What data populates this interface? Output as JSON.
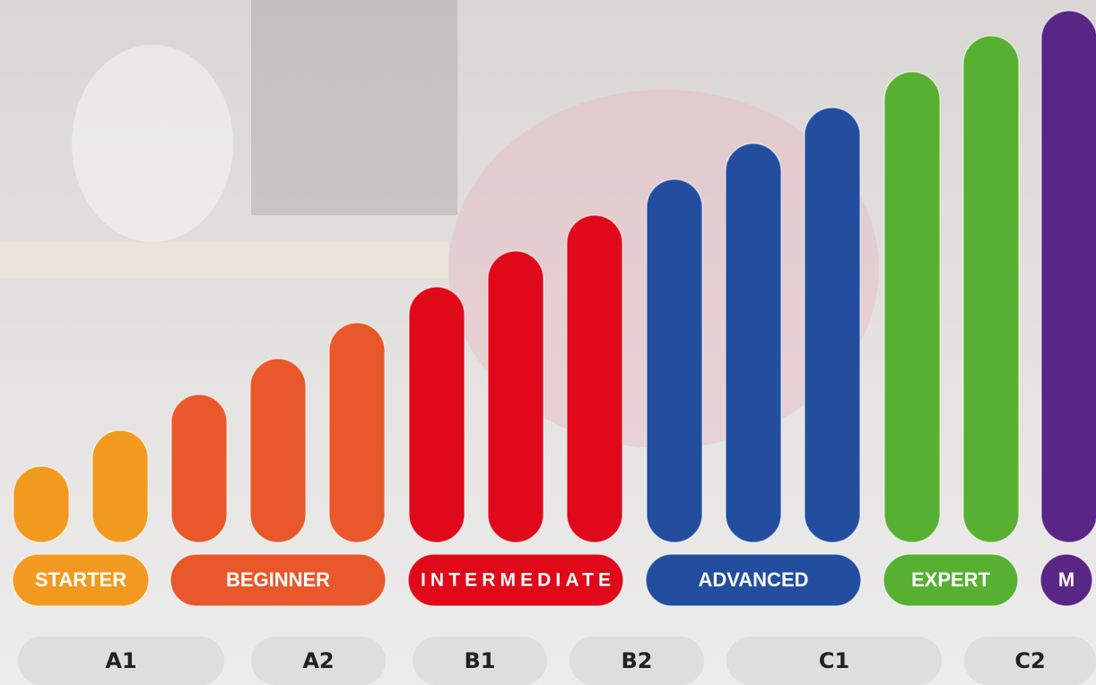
{
  "levels": [
    {
      "label": "STARTER",
      "color": "#f29a1f"
    },
    {
      "label": "BEGINNER",
      "color": "#e8582a"
    },
    {
      "label": "INTERMEDIATE",
      "color": "#e0091a"
    },
    {
      "label": "ADVANCED",
      "color": "#234ea0"
    },
    {
      "label": "EXPERT",
      "color": "#57b031"
    },
    {
      "label": "M",
      "color": "#5a2686"
    }
  ],
  "cefr": [
    "A1",
    "A2",
    "B1",
    "B2",
    "C1",
    "C2"
  ]
}
